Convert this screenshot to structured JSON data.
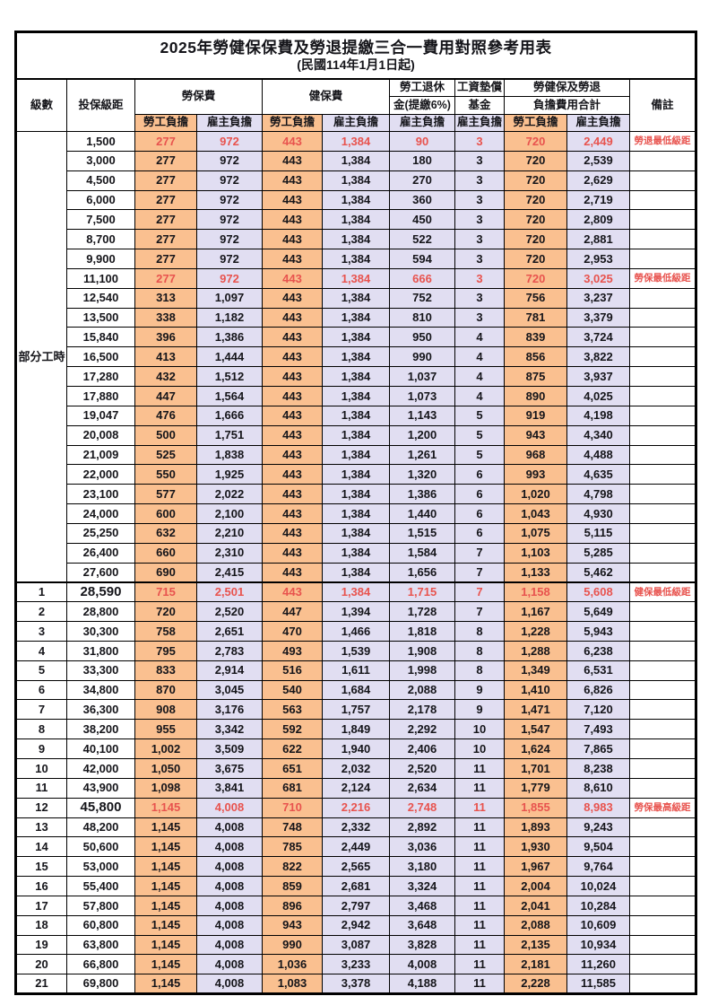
{
  "title": "2025年勞健保保費及勞退提繳三合一費用對照參考用表",
  "subtitle": "(民國114年1月1日起)",
  "columns": {
    "level": "級數",
    "bracket": "投保級距",
    "labor_insurance": "勞保費",
    "health_insurance": "健保費",
    "pension_line1": "勞工退休",
    "pension_line2": "金(提繳6%)",
    "wage_fund_line1": "工資墊償",
    "wage_fund_line2": "基金",
    "total_line1": "勞健保及勞退",
    "total_line2": "負擔費用合計",
    "remark": "備註",
    "employee_label": "勞工負擔",
    "employer_label": "雇主負擔"
  },
  "part_time_label": "部分工時",
  "part_time_row_count": 23,
  "colors": {
    "employee_bg": "#FAC090",
    "employer_bg": "#E1DEF2",
    "highlight_red": "#E8534E"
  },
  "row_fields": [
    "level",
    "bracket",
    "labor_employee",
    "labor_employer",
    "health_employee",
    "health_employer",
    "pension_employer",
    "fund_employer",
    "total_employee",
    "total_employer",
    "remark"
  ],
  "rows": [
    [
      "",
      "1,500",
      "277",
      "972",
      "443",
      "1,384",
      "90",
      "3",
      "720",
      "2,449",
      "勞退最低級距"
    ],
    [
      "",
      "3,000",
      "277",
      "972",
      "443",
      "1,384",
      "180",
      "3",
      "720",
      "2,539",
      ""
    ],
    [
      "",
      "4,500",
      "277",
      "972",
      "443",
      "1,384",
      "270",
      "3",
      "720",
      "2,629",
      ""
    ],
    [
      "",
      "6,000",
      "277",
      "972",
      "443",
      "1,384",
      "360",
      "3",
      "720",
      "2,719",
      ""
    ],
    [
      "",
      "7,500",
      "277",
      "972",
      "443",
      "1,384",
      "450",
      "3",
      "720",
      "2,809",
      ""
    ],
    [
      "",
      "8,700",
      "277",
      "972",
      "443",
      "1,384",
      "522",
      "3",
      "720",
      "2,881",
      ""
    ],
    [
      "",
      "9,900",
      "277",
      "972",
      "443",
      "1,384",
      "594",
      "3",
      "720",
      "2,953",
      ""
    ],
    [
      "",
      "11,100",
      "277",
      "972",
      "443",
      "1,384",
      "666",
      "3",
      "720",
      "3,025",
      "勞保最低級距"
    ],
    [
      "",
      "12,540",
      "313",
      "1,097",
      "443",
      "1,384",
      "752",
      "3",
      "756",
      "3,237",
      ""
    ],
    [
      "",
      "13,500",
      "338",
      "1,182",
      "443",
      "1,384",
      "810",
      "3",
      "781",
      "3,379",
      ""
    ],
    [
      "",
      "15,840",
      "396",
      "1,386",
      "443",
      "1,384",
      "950",
      "4",
      "839",
      "3,724",
      ""
    ],
    [
      "",
      "16,500",
      "413",
      "1,444",
      "443",
      "1,384",
      "990",
      "4",
      "856",
      "3,822",
      ""
    ],
    [
      "",
      "17,280",
      "432",
      "1,512",
      "443",
      "1,384",
      "1,037",
      "4",
      "875",
      "3,937",
      ""
    ],
    [
      "",
      "17,880",
      "447",
      "1,564",
      "443",
      "1,384",
      "1,073",
      "4",
      "890",
      "4,025",
      ""
    ],
    [
      "",
      "19,047",
      "476",
      "1,666",
      "443",
      "1,384",
      "1,143",
      "5",
      "919",
      "4,198",
      ""
    ],
    [
      "",
      "20,008",
      "500",
      "1,751",
      "443",
      "1,384",
      "1,200",
      "5",
      "943",
      "4,340",
      ""
    ],
    [
      "",
      "21,009",
      "525",
      "1,838",
      "443",
      "1,384",
      "1,261",
      "5",
      "968",
      "4,488",
      ""
    ],
    [
      "",
      "22,000",
      "550",
      "1,925",
      "443",
      "1,384",
      "1,320",
      "6",
      "993",
      "4,635",
      ""
    ],
    [
      "",
      "23,100",
      "577",
      "2,022",
      "443",
      "1,384",
      "1,386",
      "6",
      "1,020",
      "4,798",
      ""
    ],
    [
      "",
      "24,000",
      "600",
      "2,100",
      "443",
      "1,384",
      "1,440",
      "6",
      "1,043",
      "4,930",
      ""
    ],
    [
      "",
      "25,250",
      "632",
      "2,210",
      "443",
      "1,384",
      "1,515",
      "6",
      "1,075",
      "5,115",
      ""
    ],
    [
      "",
      "26,400",
      "660",
      "2,310",
      "443",
      "1,384",
      "1,584",
      "7",
      "1,103",
      "5,285",
      ""
    ],
    [
      "",
      "27,600",
      "690",
      "2,415",
      "443",
      "1,384",
      "1,656",
      "7",
      "1,133",
      "5,462",
      ""
    ],
    [
      "1",
      "28,590",
      "715",
      "2,501",
      "443",
      "1,384",
      "1,715",
      "7",
      "1,158",
      "5,608",
      "健保最低級距"
    ],
    [
      "2",
      "28,800",
      "720",
      "2,520",
      "447",
      "1,394",
      "1,728",
      "7",
      "1,167",
      "5,649",
      ""
    ],
    [
      "3",
      "30,300",
      "758",
      "2,651",
      "470",
      "1,466",
      "1,818",
      "8",
      "1,228",
      "5,943",
      ""
    ],
    [
      "4",
      "31,800",
      "795",
      "2,783",
      "493",
      "1,539",
      "1,908",
      "8",
      "1,288",
      "6,238",
      ""
    ],
    [
      "5",
      "33,300",
      "833",
      "2,914",
      "516",
      "1,611",
      "1,998",
      "8",
      "1,349",
      "6,531",
      ""
    ],
    [
      "6",
      "34,800",
      "870",
      "3,045",
      "540",
      "1,684",
      "2,088",
      "9",
      "1,410",
      "6,826",
      ""
    ],
    [
      "7",
      "36,300",
      "908",
      "3,176",
      "563",
      "1,757",
      "2,178",
      "9",
      "1,471",
      "7,120",
      ""
    ],
    [
      "8",
      "38,200",
      "955",
      "3,342",
      "592",
      "1,849",
      "2,292",
      "10",
      "1,547",
      "7,493",
      ""
    ],
    [
      "9",
      "40,100",
      "1,002",
      "3,509",
      "622",
      "1,940",
      "2,406",
      "10",
      "1,624",
      "7,865",
      ""
    ],
    [
      "10",
      "42,000",
      "1,050",
      "3,675",
      "651",
      "2,032",
      "2,520",
      "11",
      "1,701",
      "8,238",
      ""
    ],
    [
      "11",
      "43,900",
      "1,098",
      "3,841",
      "681",
      "2,124",
      "2,634",
      "11",
      "1,779",
      "8,610",
      ""
    ],
    [
      "12",
      "45,800",
      "1,145",
      "4,008",
      "710",
      "2,216",
      "2,748",
      "11",
      "1,855",
      "8,983",
      "勞保最高級距"
    ],
    [
      "13",
      "48,200",
      "1,145",
      "4,008",
      "748",
      "2,332",
      "2,892",
      "11",
      "1,893",
      "9,243",
      ""
    ],
    [
      "14",
      "50,600",
      "1,145",
      "4,008",
      "785",
      "2,449",
      "3,036",
      "11",
      "1,930",
      "9,504",
      ""
    ],
    [
      "15",
      "53,000",
      "1,145",
      "4,008",
      "822",
      "2,565",
      "3,180",
      "11",
      "1,967",
      "9,764",
      ""
    ],
    [
      "16",
      "55,400",
      "1,145",
      "4,008",
      "859",
      "2,681",
      "3,324",
      "11",
      "2,004",
      "10,024",
      ""
    ],
    [
      "17",
      "57,800",
      "1,145",
      "4,008",
      "896",
      "2,797",
      "3,468",
      "11",
      "2,041",
      "10,284",
      ""
    ],
    [
      "18",
      "60,800",
      "1,145",
      "4,008",
      "943",
      "2,942",
      "3,648",
      "11",
      "2,088",
      "10,609",
      ""
    ],
    [
      "19",
      "63,800",
      "1,145",
      "4,008",
      "990",
      "3,087",
      "3,828",
      "11",
      "2,135",
      "10,934",
      ""
    ],
    [
      "20",
      "66,800",
      "1,145",
      "4,008",
      "1,036",
      "3,233",
      "4,008",
      "11",
      "2,181",
      "11,260",
      ""
    ],
    [
      "21",
      "69,800",
      "1,145",
      "4,008",
      "1,083",
      "3,378",
      "4,188",
      "11",
      "2,228",
      "11,585",
      ""
    ]
  ],
  "highlight_rows": [
    0,
    7,
    23,
    34
  ],
  "big_bracket_rows": [
    23,
    34
  ],
  "section_break_rows": [
    23
  ]
}
